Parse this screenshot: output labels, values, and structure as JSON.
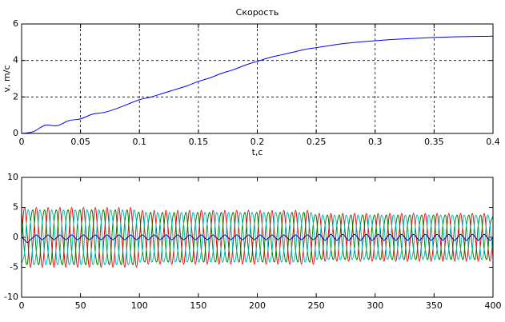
{
  "chart_data": [
    {
      "type": "line",
      "title": "Скорость",
      "xlabel": "t,c",
      "ylabel": "v, m/c",
      "xlim": [
        0,
        0.4
      ],
      "ylim": [
        0,
        6
      ],
      "xticks": [
        0,
        0.05,
        0.1,
        0.15,
        0.2,
        0.25,
        0.3,
        0.35,
        0.4
      ],
      "yticks": [
        0,
        2,
        4,
        6
      ],
      "grid": true,
      "x": [
        0,
        0.01,
        0.02,
        0.03,
        0.04,
        0.05,
        0.06,
        0.07,
        0.08,
        0.09,
        0.1,
        0.11,
        0.12,
        0.13,
        0.14,
        0.15,
        0.16,
        0.17,
        0.18,
        0.19,
        0.2,
        0.21,
        0.22,
        0.23,
        0.24,
        0.25,
        0.26,
        0.27,
        0.28,
        0.29,
        0.3,
        0.31,
        0.32,
        0.33,
        0.34,
        0.35,
        0.36,
        0.37,
        0.38,
        0.39,
        0.4
      ],
      "series": [
        {
          "color": "#0000ff",
          "values": [
            0,
            0.1,
            0.45,
            0.42,
            0.7,
            0.8,
            1.05,
            1.15,
            1.35,
            1.6,
            1.85,
            2.0,
            2.2,
            2.4,
            2.6,
            2.85,
            3.05,
            3.3,
            3.5,
            3.75,
            3.95,
            4.15,
            4.3,
            4.45,
            4.6,
            4.7,
            4.8,
            4.9,
            4.97,
            5.03,
            5.08,
            5.13,
            5.17,
            5.2,
            5.23,
            5.26,
            5.28,
            5.3,
            5.31,
            5.32,
            5.33
          ]
        }
      ]
    },
    {
      "type": "line",
      "xlim": [
        0,
        400
      ],
      "ylim": [
        -10,
        10
      ],
      "xticks": [
        0,
        50,
        100,
        150,
        200,
        250,
        300,
        350,
        400
      ],
      "yticks": [
        -10,
        -5,
        0,
        5,
        10
      ],
      "grid": false,
      "x": [
        0,
        2.5,
        5,
        7.5,
        10,
        12.5,
        15,
        17.5,
        20,
        22.5,
        25,
        27.5,
        30,
        32.5,
        35,
        37.5,
        40,
        42.5,
        45,
        47.5,
        50,
        52.5,
        55,
        57.5,
        60,
        62.5,
        65,
        67.5,
        70,
        72.5,
        75,
        77.5,
        80,
        82.5,
        85,
        87.5,
        90,
        92.5,
        95,
        97.5,
        100,
        102.5,
        105,
        107.5,
        110,
        112.5,
        115,
        117.5,
        120,
        122.5,
        125,
        127.5,
        130,
        132.5,
        135,
        137.5,
        140,
        142.5,
        145,
        147.5,
        150,
        152.5,
        155,
        157.5,
        160,
        162.5,
        165,
        167.5,
        170,
        172.5,
        175,
        177.5,
        180,
        182.5,
        185,
        187.5,
        190,
        192.5,
        195,
        197.5,
        200,
        202.5,
        205,
        207.5,
        210,
        212.5,
        215,
        217.5,
        220,
        222.5,
        225,
        227.5,
        230,
        232.5,
        235,
        237.5,
        240,
        242.5,
        245,
        247.5,
        250,
        252.5,
        255,
        257.5,
        260,
        262.5,
        265,
        267.5,
        270,
        272.5,
        275,
        277.5,
        280,
        282.5,
        285,
        287.5,
        290,
        292.5,
        295,
        297.5,
        300,
        302.5,
        305,
        307.5,
        310,
        312.5,
        315,
        317.5,
        320,
        322.5,
        325,
        327.5,
        330,
        332.5,
        335,
        337.5,
        340,
        342.5,
        345,
        347.5,
        350,
        352.5,
        355,
        357.5,
        360,
        362.5,
        365,
        367.5,
        370,
        372.5,
        375,
        377.5,
        380,
        382.5,
        385,
        387.5,
        390,
        392.5,
        395,
        397.5,
        400
      ],
      "series": [
        {
          "color": "#e00000",
          "values": [
            0,
            5,
            0,
            -5,
            0,
            5,
            0,
            -5,
            0,
            5,
            0,
            -5,
            0,
            5,
            0,
            -5,
            0,
            5,
            0,
            -5,
            0,
            5,
            0,
            -5,
            0,
            5,
            0,
            -5,
            0,
            5,
            0,
            -5,
            0,
            5,
            0,
            -5,
            0,
            5,
            0,
            -5,
            0,
            4.5,
            0,
            -4.5,
            0,
            4.5,
            0,
            -4.5,
            0,
            4.5,
            0,
            -4.5,
            0,
            4.5,
            0,
            -4.5,
            0,
            4.5,
            0,
            -4.5,
            0,
            4.5,
            0,
            -4.5,
            0,
            4.5,
            0,
            -4.5,
            0,
            4.5,
            0,
            -4.5,
            0,
            4.5,
            0,
            -4.5,
            0,
            4.5,
            0,
            -4.5,
            0,
            4.5,
            0,
            -4.5,
            0,
            4.5,
            0,
            -4.5,
            0,
            4.5,
            0,
            -4.5,
            0,
            4.5,
            0,
            -4.5,
            0,
            4.5,
            0,
            -4.5,
            0,
            4,
            0,
            -4,
            0,
            4,
            0,
            -4,
            0,
            4,
            0,
            -4,
            0,
            4,
            0,
            -4,
            0,
            4,
            0,
            -4,
            0,
            4,
            0,
            -4,
            0,
            4,
            0,
            -4,
            0,
            4,
            0,
            -4,
            0,
            4,
            0,
            -4,
            0,
            4,
            0,
            -4,
            0,
            4,
            0,
            -4,
            0,
            4,
            0,
            -4,
            0,
            4,
            0,
            -4,
            0,
            4,
            0,
            -4,
            0,
            4,
            0,
            -4,
            0
          ]
        },
        {
          "color": "#008000",
          "values": [
            4.3,
            -2.5,
            -4.3,
            2.5,
            4.3,
            -2.5,
            -4.3,
            2.5,
            4.3,
            -2.5,
            -4.3,
            2.5,
            4.3,
            -2.5,
            -4.3,
            2.5,
            4.3,
            -2.5,
            -4.3,
            2.5,
            4.3,
            -2.5,
            -4.3,
            2.5,
            4.3,
            -2.5,
            -4.3,
            2.5,
            4.3,
            -2.5,
            -4.3,
            2.5,
            4.3,
            -2.5,
            -4.3,
            2.5,
            4.3,
            -2.5,
            -4.3,
            2.5,
            3.9,
            -2.25,
            -3.9,
            2.25,
            3.9,
            -2.25,
            -3.9,
            2.25,
            3.9,
            -2.25,
            -3.9,
            2.25,
            3.9,
            -2.25,
            -3.9,
            2.25,
            3.9,
            -2.25,
            -3.9,
            2.25,
            3.9,
            -2.25,
            -3.9,
            2.25,
            3.9,
            -2.25,
            -3.9,
            2.25,
            3.9,
            -2.25,
            -3.9,
            2.25,
            3.9,
            -2.25,
            -3.9,
            2.25,
            3.9,
            -2.25,
            -3.9,
            2.25,
            3.9,
            -2.25,
            -3.9,
            2.25,
            3.9,
            -2.25,
            -3.9,
            2.25,
            3.9,
            -2.25,
            -3.9,
            2.25,
            3.9,
            -2.25,
            -3.9,
            2.25,
            3.9,
            -2.25,
            -3.9,
            2.25,
            3.5,
            -2,
            -3.5,
            2,
            3.5,
            -2,
            -3.5,
            2,
            3.5,
            -2,
            -3.5,
            2,
            3.5,
            -2,
            -3.5,
            2,
            3.5,
            -2,
            -3.5,
            2,
            3.5,
            -2,
            -3.5,
            2,
            3.5,
            -2,
            -3.5,
            2,
            3.5,
            -2,
            -3.5,
            2,
            3.5,
            -2,
            -3.5,
            2,
            3.5,
            -2,
            -3.5,
            2,
            3.5,
            -2,
            -3.5,
            2,
            3.5,
            -2,
            -3.5,
            2,
            3.5,
            -2,
            -3.5,
            2,
            3.5,
            -2,
            -3.5,
            2,
            3.5,
            -2,
            -3.5,
            2,
            3.5
          ]
        },
        {
          "color": "#00bfbf",
          "values": [
            -4.3,
            -2.5,
            4.3,
            2.5,
            -4.3,
            -2.5,
            4.3,
            2.5,
            -4.3,
            -2.5,
            4.3,
            2.5,
            -4.3,
            -2.5,
            4.3,
            2.5,
            -4.3,
            -2.5,
            4.3,
            2.5,
            -4.3,
            -2.5,
            4.3,
            2.5,
            -4.3,
            -2.5,
            4.3,
            2.5,
            -4.3,
            -2.5,
            4.3,
            2.5,
            -4.3,
            -2.5,
            4.3,
            2.5,
            -4.3,
            -2.5,
            4.3,
            2.5,
            -3.9,
            -2.25,
            3.9,
            2.25,
            -3.9,
            -2.25,
            3.9,
            2.25,
            -3.9,
            -2.25,
            3.9,
            2.25,
            -3.9,
            -2.25,
            3.9,
            2.25,
            -3.9,
            -2.25,
            3.9,
            2.25,
            -3.9,
            -2.25,
            3.9,
            2.25,
            -3.9,
            -2.25,
            3.9,
            2.25,
            -3.9,
            -2.25,
            3.9,
            2.25,
            -3.9,
            -2.25,
            3.9,
            2.25,
            -3.9,
            -2.25,
            3.9,
            2.25,
            -3.9,
            -2.25,
            3.9,
            2.25,
            -3.9,
            -2.25,
            3.9,
            2.25,
            -3.9,
            -2.25,
            3.9,
            2.25,
            -3.9,
            -2.25,
            3.9,
            2.25,
            -3.9,
            -2.25,
            3.9,
            2.25,
            -3.5,
            -2,
            3.5,
            2,
            -3.5,
            -2,
            3.5,
            2,
            -3.5,
            -2,
            3.5,
            2,
            -3.5,
            -2,
            3.5,
            2,
            -3.5,
            -2,
            3.5,
            2,
            -3.5,
            -2,
            3.5,
            2,
            -3.5,
            -2,
            3.5,
            2,
            -3.5,
            -2,
            3.5,
            2,
            -3.5,
            -2,
            3.5,
            2,
            -3.5,
            -2,
            3.5,
            2,
            -3.5,
            -2,
            3.5,
            2,
            -3.5,
            -2,
            3.5,
            2,
            -3.5,
            -2,
            3.5,
            2,
            -3.5,
            -2,
            3.5,
            2,
            -3.5,
            -2,
            3.5,
            2,
            -3.5
          ]
        },
        {
          "color": "#0000c0",
          "values": [
            0,
            -0.4,
            -0.9,
            -0.4,
            0,
            0.4,
            0,
            -0.4,
            0,
            0.4,
            0,
            -0.4,
            0,
            0.4,
            0,
            -0.4,
            0,
            0.4,
            0,
            -0.4,
            0,
            0.4,
            0,
            -0.4,
            0,
            0.4,
            0,
            -0.4,
            0,
            0.4,
            0,
            -0.4,
            0,
            0.4,
            0,
            -0.4,
            0,
            0.4,
            0,
            -0.4,
            0,
            0.4,
            0,
            -0.4,
            0,
            0.4,
            0,
            -0.4,
            0,
            0.4,
            0,
            -0.4,
            0,
            0.4,
            0,
            -0.4,
            0,
            0.4,
            0,
            -0.4,
            0,
            0.4,
            0,
            -0.4,
            0,
            0.4,
            0,
            -0.4,
            0,
            0.4,
            0,
            -0.4,
            0,
            0.4,
            0,
            -0.4,
            0,
            0.4,
            0,
            -0.4,
            0,
            0.4,
            0,
            -0.4,
            0,
            0.4,
            0,
            -0.4,
            0,
            0.4,
            0,
            -0.4,
            0,
            0.4,
            0,
            -0.4,
            0,
            0.4,
            0,
            -0.4,
            0,
            0.5,
            0,
            -0.5,
            0,
            0.5,
            0,
            -0.5,
            0,
            0.5,
            0,
            -0.5,
            0,
            0.5,
            0,
            -0.5,
            0,
            0.5,
            0,
            -0.5,
            0,
            0.5,
            0,
            -0.5,
            0,
            0.5,
            0,
            -0.5,
            0,
            0.5,
            0,
            -0.5,
            0,
            0.5,
            0,
            -0.5,
            0,
            0.5,
            0,
            -0.5,
            0,
            0.5,
            0,
            -0.5,
            0,
            0.5,
            0,
            -0.5,
            0,
            0.5,
            0,
            -0.5,
            0,
            0.5,
            0,
            -0.5,
            0,
            0.5,
            0,
            -0.5,
            0
          ]
        }
      ]
    }
  ]
}
